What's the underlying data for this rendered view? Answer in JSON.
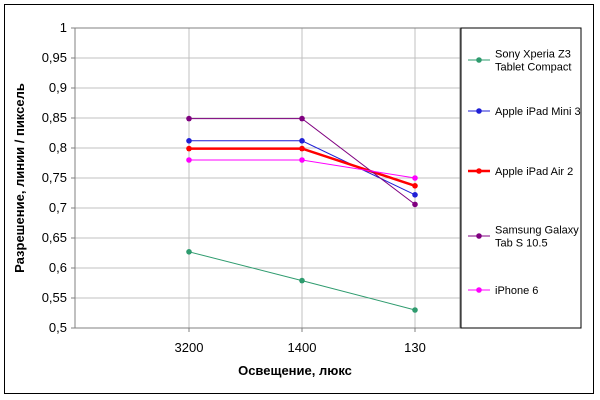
{
  "chart_data": {
    "type": "line",
    "title": "",
    "xlabel": "Освещение, люкс",
    "ylabel": "Разрешение, линии / пиксель",
    "categories": [
      "3200",
      "1400",
      "130"
    ],
    "ylim": [
      0.5,
      1
    ],
    "ytick_labels": [
      "0,5",
      "0,55",
      "0,6",
      "0,65",
      "0,7",
      "0,75",
      "0,8",
      "0,85",
      "0,9",
      "0,95",
      "1"
    ],
    "grid": true,
    "legend_position": "right",
    "series": [
      {
        "name_lines": [
          "Sony Xperia Z3",
          "Tablet Compact"
        ],
        "color": "#2e9b6e",
        "width": 1,
        "values": [
          0.627,
          0.579,
          0.53
        ]
      },
      {
        "name_lines": [
          "Apple iPad Mini 3"
        ],
        "color": "#1f1fd6",
        "width": 1,
        "values": [
          0.812,
          0.812,
          0.722
        ]
      },
      {
        "name_lines": [
          "Apple iPad Air 2"
        ],
        "color": "#ff0000",
        "width": 2.5,
        "values": [
          0.799,
          0.799,
          0.737
        ]
      },
      {
        "name_lines": [
          "Samsung Galaxy",
          "Tab S 10.5"
        ],
        "color": "#800080",
        "width": 1,
        "values": [
          0.849,
          0.849,
          0.706
        ]
      },
      {
        "name_lines": [
          "iPhone 6"
        ],
        "color": "#ff00ff",
        "width": 1,
        "values": [
          0.78,
          0.78,
          0.75
        ]
      }
    ]
  }
}
